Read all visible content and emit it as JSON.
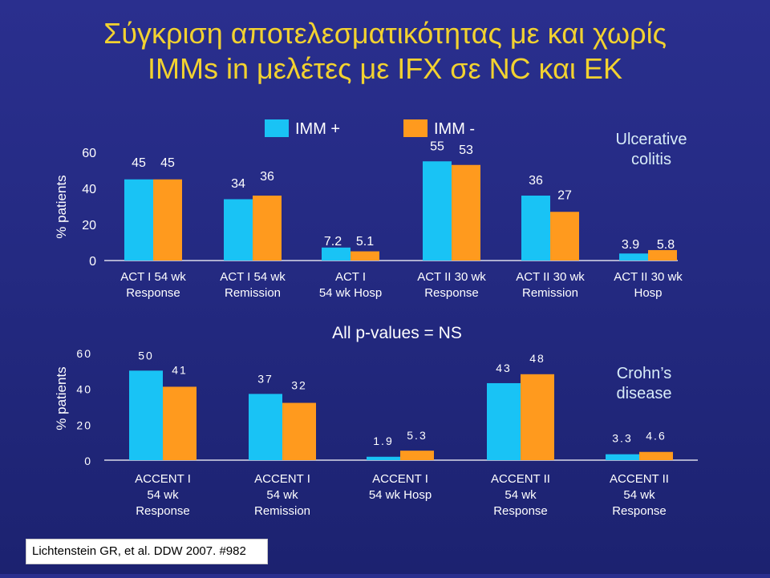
{
  "title": {
    "line1": "Σύγκριση αποτελεσματικότητας με και χωρίς",
    "line2": "IMMs in μελέτες με IFX σε NC και EK"
  },
  "legend": [
    {
      "name": "IMM +",
      "color": "#19c3f5"
    },
    {
      "name": "IMM -",
      "color": "#ff9a1e"
    }
  ],
  "citation": "Lichtenstein GR, et al. DDW 2007. #982",
  "chart_data": [
    {
      "type": "bar",
      "ylabel": "% patients",
      "yticks": [
        "0",
        "20",
        "40",
        "60"
      ],
      "ylim": [
        0,
        60
      ],
      "annotation": [
        "Ulcerative",
        "colitis"
      ],
      "series": [
        {
          "name": "IMM +",
          "color": "#19c3f5",
          "values": [
            45,
            34,
            7.2,
            55,
            36,
            3.9
          ],
          "labels": [
            "45",
            "34",
            "7.2",
            "55",
            "36",
            "3.9"
          ]
        },
        {
          "name": "IMM -",
          "color": "#ff9a1e",
          "values": [
            45,
            36,
            5.1,
            53,
            27,
            5.8
          ],
          "labels": [
            "45",
            "36",
            "5.1",
            "53",
            "27",
            "5.8"
          ]
        }
      ],
      "categories": [
        [
          "ACT I  54 wk",
          "Response"
        ],
        [
          "ACT I  54 wk",
          "Remission"
        ],
        [
          "ACT I",
          "54 wk Hosp"
        ],
        [
          "ACT II 30 wk",
          "Response"
        ],
        [
          "ACT II 30 wk",
          "Remission"
        ],
        [
          "ACT II 30 wk",
          "Hosp"
        ]
      ]
    },
    {
      "type": "bar",
      "ylabel": "% patients",
      "yticks": [
        "0",
        "20",
        "40",
        "60"
      ],
      "ylim": [
        0,
        60
      ],
      "annotation": [
        "Crohn’s",
        "disease"
      ],
      "note": "All p-values = NS",
      "series": [
        {
          "name": "IMM +",
          "color": "#19c3f5",
          "values": [
            50,
            37,
            1.9,
            43,
            3.3
          ],
          "labels": [
            "50",
            "37",
            "1.9",
            "43",
            "3.3"
          ]
        },
        {
          "name": "IMM -",
          "color": "#ff9a1e",
          "values": [
            41,
            32,
            5.3,
            48,
            4.6
          ],
          "labels": [
            "41",
            "32",
            "5.3",
            "48",
            "4.6"
          ]
        }
      ],
      "categories": [
        [
          "ACCENT I",
          "54 wk",
          "Response"
        ],
        [
          "ACCENT I",
          "54 wk",
          "Remission"
        ],
        [
          "ACCENT I",
          "54 wk Hosp"
        ],
        [
          "ACCENT II",
          "54 wk",
          "Response"
        ],
        [
          "ACCENT II",
          "54 wk",
          "Response"
        ]
      ]
    }
  ]
}
